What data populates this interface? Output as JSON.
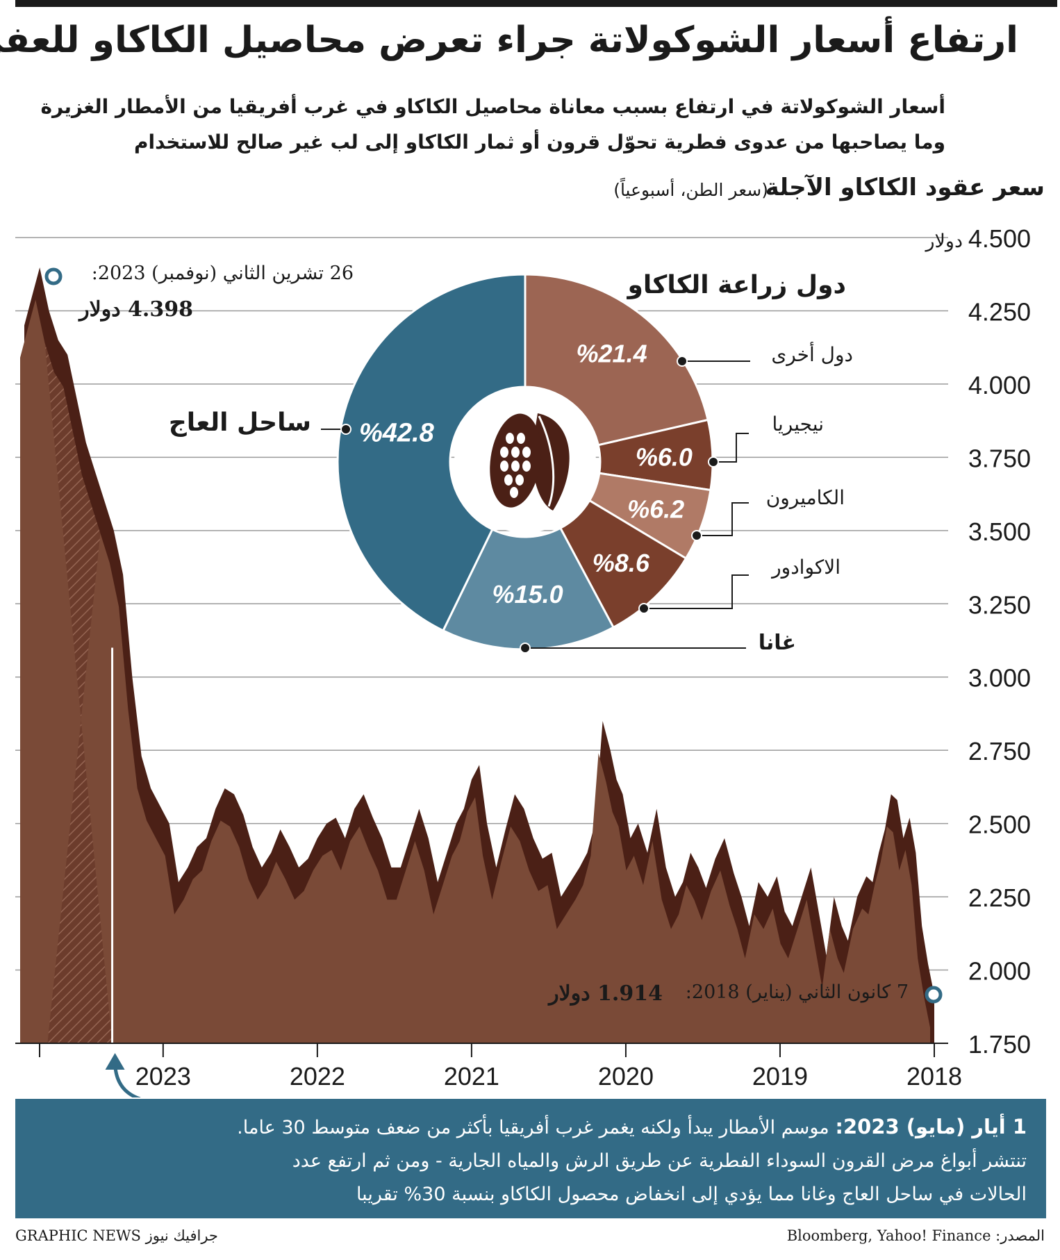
{
  "title": "ارتفاع أسعار الشوكولاتة جراء تعرض محاصيل الكاكاو للعفن",
  "subtitle": [
    "أسعار الشوكولاتة في ارتفاع بسبب معاناة محاصيل الكاكاو في غرب أفريقيا من الأمطار الغزيرة",
    "وما يصاحبها من عدوى فطرية تحوّل قرون أو ثمار الكاكاو إلى لب غير صالح للاستخدام"
  ],
  "chart_heading": "سعر عقود الكاكاو الآجلة",
  "chart_subheading": "(سعر الطن، أسبوعياً)",
  "colors": {
    "area_dark": "#4b2016",
    "area_mid": "#6e4030",
    "area_light": "#7a4a37",
    "hatch": "#8a5a48",
    "grid": "#9a9a9a",
    "ivory_coast": "#336b86",
    "ghana": "#5e8aa1",
    "ecuador": "#7a3f2c",
    "cameroon": "#b07a66",
    "nigeria": "#7a3f2c",
    "others": "#9c6553",
    "note_box": "#336b86",
    "marker": "#336b86"
  },
  "chart_data": [
    {
      "type": "area",
      "title": "سعر عقود الكاكاو الآجلة",
      "ylabel": "دولار",
      "y_unit_label": "دولار",
      "ylim": [
        1750,
        4500
      ],
      "y_ticks": [
        1750,
        2000,
        2250,
        2500,
        2750,
        3000,
        3250,
        3500,
        3750,
        4000,
        4250,
        4500
      ],
      "y_tick_labels": [
        "1.750",
        "2.000",
        "2.250",
        "2.500",
        "2.750",
        "3.000",
        "3.250",
        "3.500",
        "3.750",
        "4.000",
        "4.250",
        "4.500"
      ],
      "x_ticks": [
        2018,
        2019,
        2020,
        2021,
        2022,
        2023
      ],
      "x_tick_labels": [
        "2018",
        "2019",
        "2020",
        "2021",
        "2022",
        "2023"
      ],
      "xlim": [
        2023.9,
        2018.0
      ],
      "x": [
        2018.0,
        2018.04,
        2018.08,
        2018.12,
        2018.16,
        2018.2,
        2018.24,
        2018.28,
        2018.32,
        2018.36,
        2018.4,
        2018.44,
        2018.5,
        2018.56,
        2018.6,
        2018.65,
        2018.7,
        2018.75,
        2018.8,
        2018.86,
        2018.92,
        2018.97,
        2019.02,
        2019.08,
        2019.14,
        2019.2,
        2019.25,
        2019.3,
        2019.36,
        2019.42,
        2019.48,
        2019.53,
        2019.58,
        2019.63,
        2019.68,
        2019.74,
        2019.8,
        2019.86,
        2019.92,
        2019.97,
        2020.02,
        2020.06,
        2020.1,
        2020.15,
        2020.2,
        2020.25,
        2020.3,
        2020.36,
        2020.42,
        2020.48,
        2020.54,
        2020.6,
        2020.66,
        2020.72,
        2020.78,
        2020.84,
        2020.9,
        2020.95,
        2021.0,
        2021.05,
        2021.1,
        2021.16,
        2021.22,
        2021.28,
        2021.34,
        2021.4,
        2021.46,
        2021.52,
        2021.58,
        2021.64,
        2021.7,
        2021.76,
        2021.82,
        2021.88,
        2021.94,
        2022.0,
        2022.06,
        2022.12,
        2022.18,
        2022.24,
        2022.3,
        2022.36,
        2022.42,
        2022.48,
        2022.54,
        2022.6,
        2022.66,
        2022.72,
        2022.78,
        2022.84,
        2022.9,
        2022.96,
        2023.02,
        2023.08,
        2023.14,
        2023.2,
        2023.26,
        2023.32,
        2023.38,
        2023.44,
        2023.5,
        2023.56,
        2023.62,
        2023.68,
        2023.74,
        2023.8,
        2023.85,
        2023.9
      ],
      "values": [
        1914,
        2020,
        2150,
        2400,
        2520,
        2450,
        2580,
        2600,
        2480,
        2400,
        2300,
        2320,
        2250,
        2100,
        2150,
        2250,
        2050,
        2200,
        2350,
        2250,
        2150,
        2200,
        2320,
        2250,
        2300,
        2150,
        2250,
        2330,
        2450,
        2380,
        2280,
        2350,
        2400,
        2300,
        2250,
        2350,
        2550,
        2400,
        2500,
        2450,
        2600,
        2650,
        2750,
        2850,
        2500,
        2400,
        2350,
        2300,
        2250,
        2400,
        2380,
        2450,
        2550,
        2600,
        2480,
        2350,
        2500,
        2700,
        2650,
        2550,
        2500,
        2400,
        2300,
        2450,
        2550,
        2450,
        2350,
        2350,
        2450,
        2520,
        2600,
        2550,
        2450,
        2520,
        2500,
        2450,
        2380,
        2350,
        2420,
        2480,
        2400,
        2350,
        2420,
        2530,
        2600,
        2620,
        2550,
        2450,
        2420,
        2350,
        2300,
        2500,
        2560,
        2620,
        2730,
        3000,
        3350,
        3500,
        3600,
        3700,
        3800,
        3950,
        4100,
        4150,
        4250,
        4398,
        4300,
        4200
      ],
      "shaded_region": [
        2023.33,
        2023.75
      ],
      "highlight_date": 2023.33,
      "annotation_max": {
        "date": "26 تشرين الثاني (نوفمبر) 2023:",
        "value_label": "4.398 دولار",
        "x": 2023.9,
        "y": 4398
      },
      "annotation_min": {
        "date": "7 كانون الثاني (يناير) 2018:",
        "value_label": "1.914 دولار",
        "x": 2018.0,
        "y": 1914
      }
    },
    {
      "type": "pie",
      "title": "دول زراعة الكاكاو",
      "slices": [
        {
          "name": "ساحل العاج",
          "value": 42.8,
          "label": "%42.8"
        },
        {
          "name": "غانا",
          "value": 15.0,
          "label": "%15.0"
        },
        {
          "name": "الاكوادور",
          "value": 8.6,
          "label": "%8.6"
        },
        {
          "name": "الكاميرون",
          "value": 6.2,
          "label": "%6.2"
        },
        {
          "name": "نيجيريا",
          "value": 6.0,
          "label": "%6.0"
        },
        {
          "name": "دول أخرى",
          "value": 21.4,
          "label": "%21.4"
        }
      ]
    }
  ],
  "note": {
    "date": "1 أيار (مايو) 2023:",
    "line1": "موسم الأمطار يبدأ ولكنه يغمر غرب أفريقيا بأكثر من ضعف متوسط 30 عاما.",
    "line2": "تنتشر أبواغ مرض القرون السوداء الفطرية عن طريق الرش والمياه الجارية - ومن ثم ارتفع عدد",
    "line3": "الحالات في ساحل العاج وغانا مما يؤدي إلى انخفاض محصول الكاكاو بنسبة 30% تقريبا"
  },
  "source": "المصدر: Bloomberg, Yahoo! Finance",
  "credit": "GRAPHIC NEWS جرافيك نيوز"
}
